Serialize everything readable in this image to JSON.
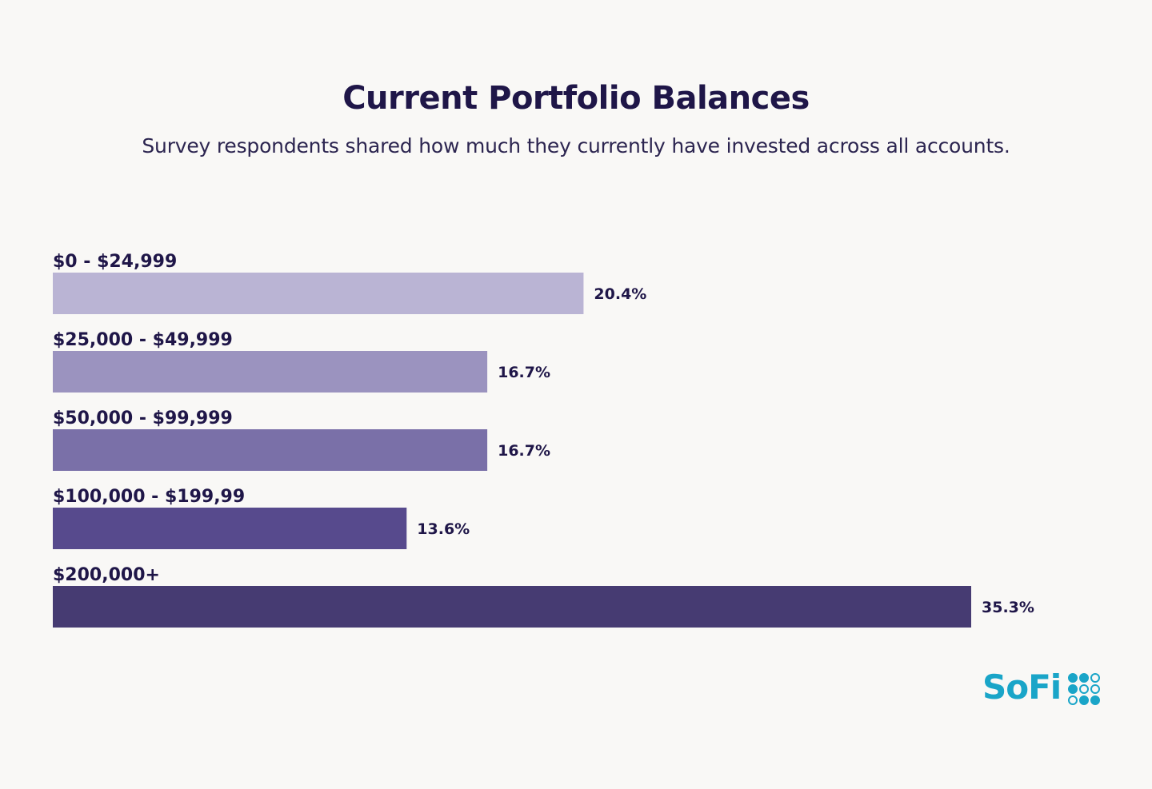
{
  "chart_data": {
    "type": "bar",
    "orientation": "horizontal",
    "title": "Current Portfolio Balances",
    "subtitle": "Survey respondents shared how much they currently have invested across all accounts.",
    "categories": [
      "$0 - $24,999",
      "$25,000 - $49,999",
      "$50,000 - $99,999",
      "$100,000 - $199,99",
      "$200,000+"
    ],
    "values": [
      20.4,
      16.7,
      16.7,
      13.6,
      35.3
    ],
    "value_labels": [
      "20.4%",
      "16.7%",
      "16.7%",
      "13.6%",
      "35.3%"
    ],
    "colors": [
      "#bab4d4",
      "#9b93bf",
      "#7a70a8",
      "#574a8d",
      "#463b72"
    ],
    "unit": "%",
    "grid": false,
    "legend": "none"
  },
  "brand": {
    "logo_text": "SoFi",
    "logo_color": "#1aa5c8"
  },
  "colors": {
    "background": "#f9f8f6",
    "text": "#1f1648"
  }
}
